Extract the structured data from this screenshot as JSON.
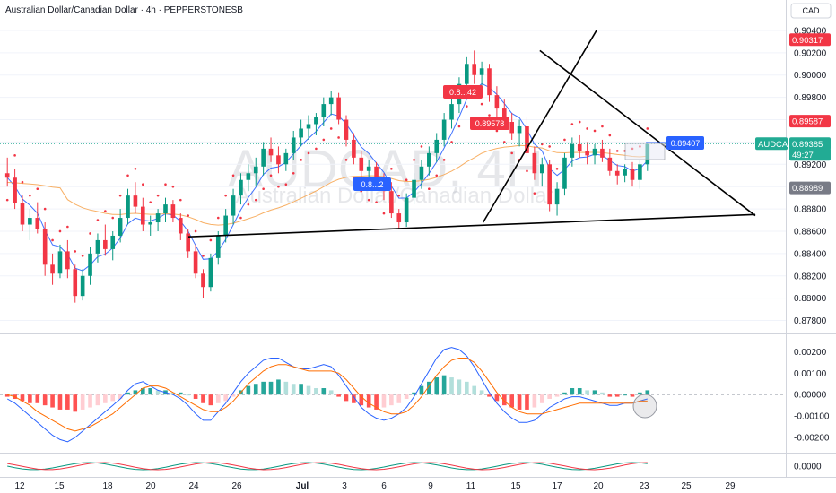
{
  "header": {
    "symbol_title": "Australian Dollar/Canadian Dollar · 4h · PEPPERSTONESB",
    "currency": "CAD"
  },
  "watermark": {
    "big": "AUDCAD, 4H",
    "small": "Australian Dollar/Canadian Dollar"
  },
  "price_scale": {
    "ticks": [
      "0.90400",
      "0.90200",
      "0.90000",
      "0.89800",
      "0.89600",
      "0.89400",
      "0.89200",
      "0.89000",
      "0.88800",
      "0.88600",
      "0.88400",
      "0.88200",
      "0.88000",
      "0.87800"
    ],
    "tick_values": [
      0.904,
      0.902,
      0.9,
      0.898,
      0.896,
      0.894,
      0.892,
      0.89,
      0.888,
      0.886,
      0.884,
      0.882,
      0.88,
      0.878
    ],
    "labels": [
      {
        "text": "0.90317",
        "value": 0.90317,
        "bg": "#f23645",
        "fg": "#ffffff"
      },
      {
        "text": "0.89587",
        "value": 0.89587,
        "bg": "#f23645",
        "fg": "#ffffff"
      },
      {
        "text": "AUDCAD",
        "value": 0.89385,
        "bg": "#22ab94",
        "fg": "#ffffff",
        "side": "left"
      },
      {
        "text": "0.89385",
        "value": 0.89385,
        "bg": "#22ab94",
        "fg": "#ffffff"
      },
      {
        "text": "49:27",
        "value": 0.89268,
        "bg": "#22ab94",
        "fg": "#ffffff"
      },
      {
        "text": "0.88989",
        "value": 0.88989,
        "bg": "#787b86",
        "fg": "#ffffff"
      }
    ]
  },
  "macd_scale": {
    "ticks": [
      "0.00200",
      "0.00100",
      "0.00000",
      "-0.00100",
      "-0.00200"
    ],
    "tick_values": [
      0.002,
      0.001,
      0.0,
      -0.001,
      -0.002
    ]
  },
  "osc_scale": {
    "ticks": [
      "0.0000"
    ]
  },
  "time_axis": {
    "labels": [
      "12",
      "15",
      "18",
      "20",
      "24",
      "26",
      "Jul",
      "3",
      "6",
      "9",
      "11",
      "15",
      "17",
      "20",
      "23",
      "25",
      "29"
    ]
  },
  "annotations": [
    {
      "text": "0.89407",
      "color": "#2962ff"
    },
    {
      "text": "0.8...42",
      "color": "#f23645"
    },
    {
      "text": "0.89578",
      "color": "#f23645"
    },
    {
      "text": "0.8...2",
      "color": "#2962ff"
    }
  ],
  "colors": {
    "up": "#089981",
    "down": "#f23645",
    "ema_blue": "#2962ff",
    "ma_orange": "#f7a24a",
    "macd_line": "#2962ff",
    "signal_line": "#ff6d00",
    "hist_up_strong": "#26a69a",
    "hist_up_weak": "#b2dfdb",
    "hist_down_strong": "#ff5252",
    "hist_down_weak": "#ffcdd2"
  },
  "chart_data": {
    "type": "candlestick",
    "symbol": "AUDCAD",
    "timeframe": "4h",
    "ylim": [
      0.877,
      0.9048
    ],
    "candles": [
      [
        0.8912,
        0.8926,
        0.89,
        0.8908
      ],
      [
        0.8908,
        0.8916,
        0.888,
        0.8885
      ],
      [
        0.8885,
        0.8892,
        0.886,
        0.8866
      ],
      [
        0.8866,
        0.888,
        0.8852,
        0.8872
      ],
      [
        0.8872,
        0.8886,
        0.8858,
        0.8862
      ],
      [
        0.8862,
        0.8868,
        0.882,
        0.883
      ],
      [
        0.883,
        0.884,
        0.8812,
        0.8822
      ],
      [
        0.8822,
        0.8848,
        0.8818,
        0.8842
      ],
      [
        0.8842,
        0.8852,
        0.8818,
        0.8826
      ],
      [
        0.8826,
        0.883,
        0.8796,
        0.8802
      ],
      [
        0.8802,
        0.8826,
        0.8798,
        0.882
      ],
      [
        0.882,
        0.8846,
        0.8812,
        0.884
      ],
      [
        0.884,
        0.8858,
        0.8832,
        0.8852
      ],
      [
        0.8852,
        0.8866,
        0.8838,
        0.8844
      ],
      [
        0.8844,
        0.886,
        0.8834,
        0.8856
      ],
      [
        0.8856,
        0.888,
        0.885,
        0.8872
      ],
      [
        0.8872,
        0.8898,
        0.8866,
        0.8892
      ],
      [
        0.8892,
        0.8904,
        0.8876,
        0.8882
      ],
      [
        0.8882,
        0.889,
        0.886,
        0.8866
      ],
      [
        0.8866,
        0.8874,
        0.8856,
        0.8868
      ],
      [
        0.8868,
        0.888,
        0.886,
        0.8876
      ],
      [
        0.8876,
        0.889,
        0.8868,
        0.8884
      ],
      [
        0.8884,
        0.8888,
        0.8868,
        0.8872
      ],
      [
        0.8872,
        0.8876,
        0.8852,
        0.8858
      ],
      [
        0.8858,
        0.8862,
        0.8836,
        0.8842
      ],
      [
        0.8842,
        0.8848,
        0.8818,
        0.8822
      ],
      [
        0.8822,
        0.8826,
        0.88,
        0.881
      ],
      [
        0.881,
        0.884,
        0.8806,
        0.8836
      ],
      [
        0.8836,
        0.886,
        0.883,
        0.8856
      ],
      [
        0.8856,
        0.888,
        0.885,
        0.8874
      ],
      [
        0.8874,
        0.8898,
        0.8866,
        0.8892
      ],
      [
        0.8892,
        0.8912,
        0.8884,
        0.8906
      ],
      [
        0.8906,
        0.892,
        0.8896,
        0.8912
      ],
      [
        0.8912,
        0.8926,
        0.89,
        0.8918
      ],
      [
        0.8918,
        0.894,
        0.891,
        0.8934
      ],
      [
        0.8934,
        0.8944,
        0.8922,
        0.8928
      ],
      [
        0.8928,
        0.8936,
        0.8912,
        0.892
      ],
      [
        0.892,
        0.8934,
        0.8914,
        0.893
      ],
      [
        0.893,
        0.895,
        0.8924,
        0.8944
      ],
      [
        0.8944,
        0.896,
        0.8936,
        0.8952
      ],
      [
        0.8952,
        0.8964,
        0.8942,
        0.8956
      ],
      [
        0.8956,
        0.8966,
        0.8946,
        0.8962
      ],
      [
        0.8962,
        0.898,
        0.8954,
        0.8974
      ],
      [
        0.8974,
        0.8986,
        0.8964,
        0.898
      ],
      [
        0.898,
        0.8984,
        0.8956,
        0.896
      ],
      [
        0.896,
        0.8964,
        0.8936,
        0.8942
      ],
      [
        0.8942,
        0.8948,
        0.892,
        0.8926
      ],
      [
        0.8926,
        0.8932,
        0.8908,
        0.8914
      ],
      [
        0.8914,
        0.8924,
        0.89,
        0.8918
      ],
      [
        0.8918,
        0.8922,
        0.8898,
        0.8904
      ],
      [
        0.8904,
        0.8912,
        0.8888,
        0.8896
      ],
      [
        0.8896,
        0.8904,
        0.8872,
        0.8876
      ],
      [
        0.8876,
        0.888,
        0.8862,
        0.8868
      ],
      [
        0.8868,
        0.8894,
        0.8864,
        0.889
      ],
      [
        0.889,
        0.8912,
        0.8884,
        0.8906
      ],
      [
        0.8906,
        0.8924,
        0.8898,
        0.8918
      ],
      [
        0.8918,
        0.8936,
        0.891,
        0.893
      ],
      [
        0.893,
        0.8948,
        0.8922,
        0.8942
      ],
      [
        0.8942,
        0.8966,
        0.8936,
        0.896
      ],
      [
        0.896,
        0.898,
        0.8952,
        0.8974
      ],
      [
        0.8974,
        0.8998,
        0.8966,
        0.8992
      ],
      [
        0.8992,
        0.9016,
        0.8984,
        0.901
      ],
      [
        0.901,
        0.9022,
        0.8992,
        0.9
      ],
      [
        0.9,
        0.9012,
        0.8986,
        0.9006
      ],
      [
        0.9006,
        0.901,
        0.8976,
        0.8982
      ],
      [
        0.8982,
        0.899,
        0.8962,
        0.897
      ],
      [
        0.897,
        0.8978,
        0.8952,
        0.8958
      ],
      [
        0.8958,
        0.8966,
        0.8942,
        0.8948
      ],
      [
        0.8948,
        0.896,
        0.8936,
        0.8954
      ],
      [
        0.8954,
        0.8962,
        0.8926,
        0.893
      ],
      [
        0.893,
        0.8936,
        0.8906,
        0.8912
      ],
      [
        0.8912,
        0.8926,
        0.89,
        0.892
      ],
      [
        0.892,
        0.8924,
        0.8878,
        0.8884
      ],
      [
        0.8884,
        0.8904,
        0.8874,
        0.8898
      ],
      [
        0.8898,
        0.893,
        0.8892,
        0.8926
      ],
      [
        0.8926,
        0.8944,
        0.8918,
        0.8938
      ],
      [
        0.8938,
        0.8946,
        0.8926,
        0.8932
      ],
      [
        0.8932,
        0.894,
        0.892,
        0.8928
      ],
      [
        0.8928,
        0.8938,
        0.892,
        0.8934
      ],
      [
        0.8934,
        0.8942,
        0.8922,
        0.8926
      ],
      [
        0.8926,
        0.8934,
        0.891,
        0.8914
      ],
      [
        0.8914,
        0.892,
        0.8902,
        0.891
      ],
      [
        0.891,
        0.892,
        0.8904,
        0.8916
      ],
      [
        0.8916,
        0.8922,
        0.89,
        0.8906
      ],
      [
        0.8906,
        0.8924,
        0.8898,
        0.892
      ],
      [
        0.892,
        0.894,
        0.8914,
        0.8938
      ]
    ],
    "series": [
      {
        "name": "EMA",
        "color": "#2962ff",
        "values_note": "fast moving average of close"
      },
      {
        "name": "MA",
        "color": "#f7a24a",
        "values_note": "slow moving average of close"
      }
    ],
    "parabolic_sar": true,
    "trendlines": [
      {
        "from": [
          0.0,
          0.8855
        ],
        "to": [
          1.0,
          0.8875
        ]
      },
      {
        "from": [
          0.52,
          0.8868
        ],
        "to": [
          0.72,
          0.904
        ]
      },
      {
        "from": [
          0.62,
          0.9022
        ],
        "to": [
          1.0,
          0.8874
        ]
      }
    ],
    "macd": {
      "ylim": [
        -0.0025,
        0.0026
      ],
      "histogram": [
        -0.0001,
        -0.0002,
        -0.0003,
        -0.0004,
        -0.0004,
        -0.0005,
        -0.0006,
        -0.0007,
        -0.0007,
        -0.0008,
        -0.0007,
        -0.0006,
        -0.0005,
        -0.0004,
        -0.0003,
        -0.0002,
        0.0001,
        0.0002,
        0.0003,
        0.0003,
        0.0002,
        0.0002,
        0.0001,
        0.0001,
        0.0,
        -0.0002,
        -0.0004,
        -0.0005,
        -0.0004,
        -0.0003,
        -0.0001,
        0.0002,
        0.0004,
        0.0005,
        0.0006,
        0.0006,
        0.0007,
        0.0006,
        0.0005,
        0.0005,
        0.0004,
        0.0003,
        0.0003,
        0.0002,
        -0.0001,
        -0.0003,
        -0.0004,
        -0.0005,
        -0.0006,
        -0.0007,
        -0.0006,
        -0.0005,
        -0.0004,
        -0.0002,
        0.0001,
        0.0004,
        0.0006,
        0.0008,
        0.0009,
        0.0008,
        0.0007,
        0.0006,
        0.0004,
        0.0002,
        -0.0001,
        -0.0003,
        -0.0005,
        -0.0006,
        -0.0007,
        -0.0007,
        -0.0006,
        -0.0004,
        -0.0002,
        -0.0001,
        0.0001,
        0.0003,
        0.0003,
        0.0002,
        0.0002,
        0.0001,
        -0.0001,
        -0.0001,
        0.0,
        -0.0001,
        0.0001,
        0.0002
      ],
      "macd_line": [
        -0.0002,
        -0.0004,
        -0.0007,
        -0.001,
        -0.0013,
        -0.0016,
        -0.0019,
        -0.0021,
        -0.0022,
        -0.002,
        -0.0017,
        -0.0014,
        -0.0011,
        -0.0008,
        -0.0005,
        -0.0002,
        0.0002,
        0.0005,
        0.0006,
        0.0004,
        0.0002,
        0.0001,
        0.0,
        -0.0002,
        -0.0005,
        -0.0009,
        -0.0012,
        -0.0012,
        -0.0008,
        -0.0004,
        0.0001,
        0.0006,
        0.001,
        0.0013,
        0.0016,
        0.0017,
        0.0017,
        0.0015,
        0.0013,
        0.0012,
        0.0012,
        0.0013,
        0.0014,
        0.0013,
        0.0009,
        0.0004,
        -0.0001,
        -0.0006,
        -0.0009,
        -0.0011,
        -0.0012,
        -0.0011,
        -0.0009,
        -0.0006,
        -0.0001,
        0.0005,
        0.0011,
        0.0017,
        0.0021,
        0.0022,
        0.0021,
        0.0018,
        0.0013,
        0.0007,
        0.0001,
        -0.0004,
        -0.0008,
        -0.0011,
        -0.0013,
        -0.0013,
        -0.0012,
        -0.0009,
        -0.0006,
        -0.0004,
        -0.0002,
        -0.0001,
        -0.0001,
        -0.0002,
        -0.0003,
        -0.0004,
        -0.0005,
        -0.0005,
        -0.0004,
        -0.0004,
        -0.0003,
        -0.0002
      ],
      "signal_line": [
        0.0,
        -0.0001,
        -0.0003,
        -0.0005,
        -0.0008,
        -0.001,
        -0.0012,
        -0.0014,
        -0.0016,
        -0.0017,
        -0.0016,
        -0.0015,
        -0.0013,
        -0.0011,
        -0.0009,
        -0.0006,
        -0.0003,
        0.0,
        0.0003,
        0.0004,
        0.0004,
        0.0003,
        0.0001,
        -0.0001,
        -0.0003,
        -0.0005,
        -0.0007,
        -0.0008,
        -0.0008,
        -0.0006,
        -0.0003,
        0.0001,
        0.0005,
        0.0008,
        0.0011,
        0.0013,
        0.0014,
        0.0014,
        0.0013,
        0.0012,
        0.0011,
        0.0011,
        0.0011,
        0.0011,
        0.001,
        0.0007,
        0.0003,
        -0.0001,
        -0.0004,
        -0.0006,
        -0.0008,
        -0.0009,
        -0.0009,
        -0.0008,
        -0.0005,
        -0.0001,
        0.0004,
        0.0009,
        0.0013,
        0.0016,
        0.0017,
        0.0017,
        0.0015,
        0.0011,
        0.0006,
        0.0001,
        -0.0003,
        -0.0006,
        -0.0008,
        -0.0009,
        -0.0009,
        -0.0009,
        -0.0008,
        -0.0007,
        -0.0006,
        -0.0005,
        -0.0004,
        -0.0004,
        -0.0004,
        -0.0004,
        -0.0004,
        -0.0004,
        -0.0004,
        -0.0004,
        -0.0003,
        -0.0003
      ]
    }
  }
}
